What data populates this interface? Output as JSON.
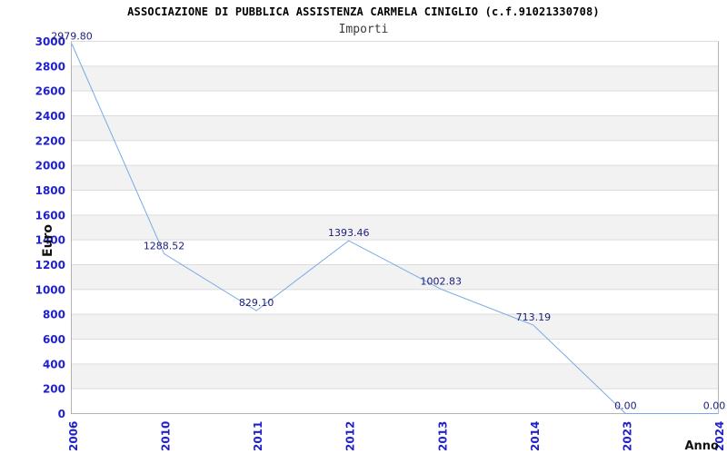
{
  "chart_data": {
    "type": "line",
    "title": "ASSOCIAZIONE DI PUBBLICA ASSISTENZA CARMELA CINIGLIO (c.f.91021330708)",
    "subtitle": "Importi",
    "xlabel": "Anno",
    "ylabel": "Euro",
    "categories": [
      "2006",
      "2010",
      "2011",
      "2012",
      "2013",
      "2014",
      "2023",
      "2024"
    ],
    "series": [
      {
        "name": "Importi",
        "values": [
          2979.8,
          1288.52,
          829.1,
          1393.46,
          1002.83,
          713.19,
          0,
          0
        ]
      }
    ],
    "point_labels": [
      "2979.80",
      "1288.52",
      "829.10",
      "1393.46",
      "1002.83",
      "713.19",
      "0.00",
      "0.00"
    ],
    "ylim": [
      0,
      3000
    ],
    "ytick_step": 200,
    "yticks": [
      "0",
      "200",
      "400",
      "600",
      "800",
      "1000",
      "1200",
      "1400",
      "1600",
      "1800",
      "2000",
      "2200",
      "2400",
      "2600",
      "2800",
      "3000"
    ],
    "grid": true,
    "legend_position": "none",
    "plot_bands_alternate": true,
    "colors": {
      "line": "#79aae6",
      "tick_label": "#2121cc",
      "point_label": "#20207e",
      "band": "#f2f2f2",
      "grid": "#dcdcdc",
      "axis": "#b3b3b3",
      "title": "#000000",
      "subtitle": "#3c3c3c",
      "axis_title": "#111111",
      "background": "#ffffff"
    }
  }
}
